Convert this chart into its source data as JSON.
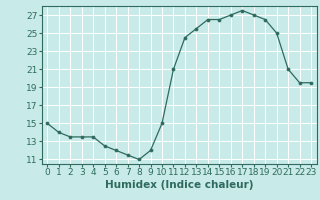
{
  "x": [
    0,
    1,
    2,
    3,
    4,
    5,
    6,
    7,
    8,
    9,
    10,
    11,
    12,
    13,
    14,
    15,
    16,
    17,
    18,
    19,
    20,
    21,
    22,
    23
  ],
  "y": [
    15,
    14,
    13.5,
    13.5,
    13.5,
    12.5,
    12,
    11.5,
    11,
    12,
    15,
    21,
    24.5,
    25.5,
    26.5,
    26.5,
    27,
    27.5,
    27,
    26.5,
    25,
    21,
    19.5,
    19.5
  ],
  "line_color": "#2e6b5e",
  "marker_color": "#2e6b5e",
  "bg_color": "#c8eae8",
  "grid_color": "#ffffff",
  "xlabel": "Humidex (Indice chaleur)",
  "ylim": [
    10.5,
    28
  ],
  "xlim": [
    -0.5,
    23.5
  ],
  "yticks": [
    11,
    13,
    15,
    17,
    19,
    21,
    23,
    25,
    27
  ],
  "xticks": [
    0,
    1,
    2,
    3,
    4,
    5,
    6,
    7,
    8,
    9,
    10,
    11,
    12,
    13,
    14,
    15,
    16,
    17,
    18,
    19,
    20,
    21,
    22,
    23
  ],
  "tick_label_fontsize": 6.5,
  "xlabel_fontsize": 7.5
}
